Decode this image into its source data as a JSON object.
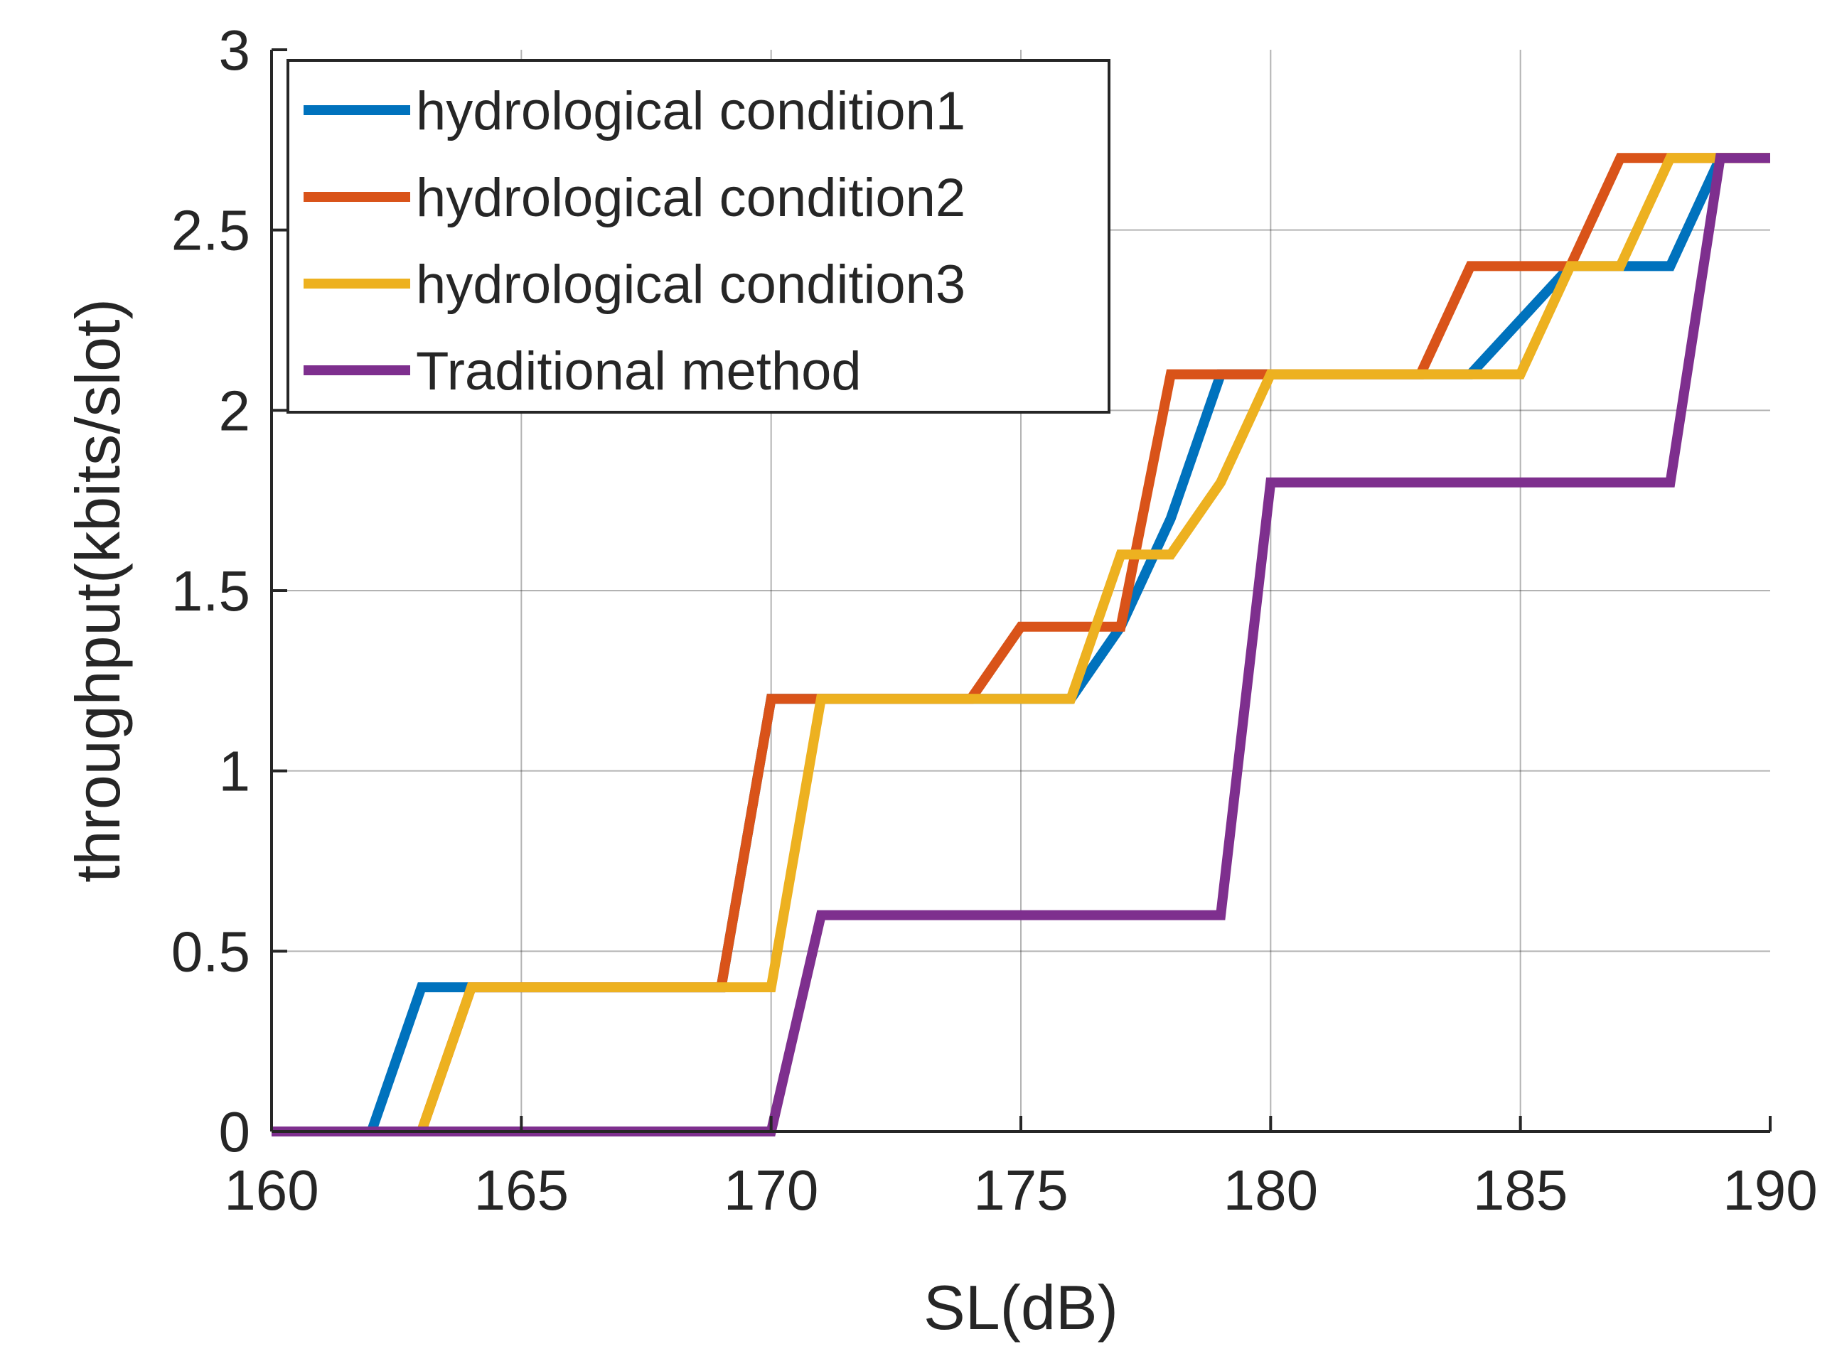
{
  "chart_data": {
    "type": "line",
    "title": "",
    "xlabel": "SL(dB)",
    "ylabel": "throughput(kbits/slot)",
    "xlim": [
      160,
      190
    ],
    "ylim": [
      0,
      3
    ],
    "xticks": [
      160,
      165,
      170,
      175,
      180,
      185,
      190
    ],
    "yticks": [
      0,
      0.5,
      1,
      1.5,
      2,
      2.5,
      3
    ],
    "xtick_labels": [
      "160",
      "165",
      "170",
      "175",
      "180",
      "185",
      "190"
    ],
    "ytick_labels": [
      "0",
      "0.5",
      "1",
      "1.5",
      "2",
      "2.5",
      "3"
    ],
    "grid": true,
    "legend_position": "top-left",
    "series": [
      {
        "name": "hydrological condition1",
        "color": "#0072BD",
        "x": [
          160,
          162,
          163,
          169,
          170,
          171,
          176,
          177,
          178,
          179,
          183,
          184,
          186,
          187,
          188,
          189,
          190
        ],
        "y": [
          0,
          0,
          0.4,
          0.4,
          1.2,
          1.2,
          1.2,
          1.4,
          1.7,
          2.1,
          2.1,
          2.1,
          2.4,
          2.4,
          2.4,
          2.7,
          2.7
        ]
      },
      {
        "name": "hydrological condition2",
        "color": "#D95319",
        "x": [
          160,
          163,
          164,
          169,
          170,
          171,
          174,
          175,
          177,
          178,
          180,
          183,
          184,
          186,
          187,
          188,
          189,
          190
        ],
        "y": [
          0,
          0,
          0.4,
          0.4,
          1.2,
          1.2,
          1.2,
          1.4,
          1.4,
          2.1,
          2.1,
          2.1,
          2.4,
          2.4,
          2.7,
          2.7,
          2.7,
          2.7
        ]
      },
      {
        "name": "hydrological condition3",
        "color": "#EDB120",
        "x": [
          160,
          163,
          164,
          170,
          171,
          176,
          177,
          178,
          179,
          180,
          185,
          186,
          187,
          188,
          189,
          190
        ],
        "y": [
          0,
          0,
          0.4,
          0.4,
          1.2,
          1.2,
          1.6,
          1.6,
          1.8,
          2.1,
          2.1,
          2.4,
          2.4,
          2.7,
          2.7,
          2.7
        ]
      },
      {
        "name": "Traditional method",
        "color": "#7E2F8E",
        "x": [
          160,
          170,
          171,
          179,
          180,
          188,
          189,
          190
        ],
        "y": [
          0,
          0,
          0.6,
          0.6,
          1.8,
          1.8,
          2.7,
          2.7
        ]
      }
    ]
  }
}
